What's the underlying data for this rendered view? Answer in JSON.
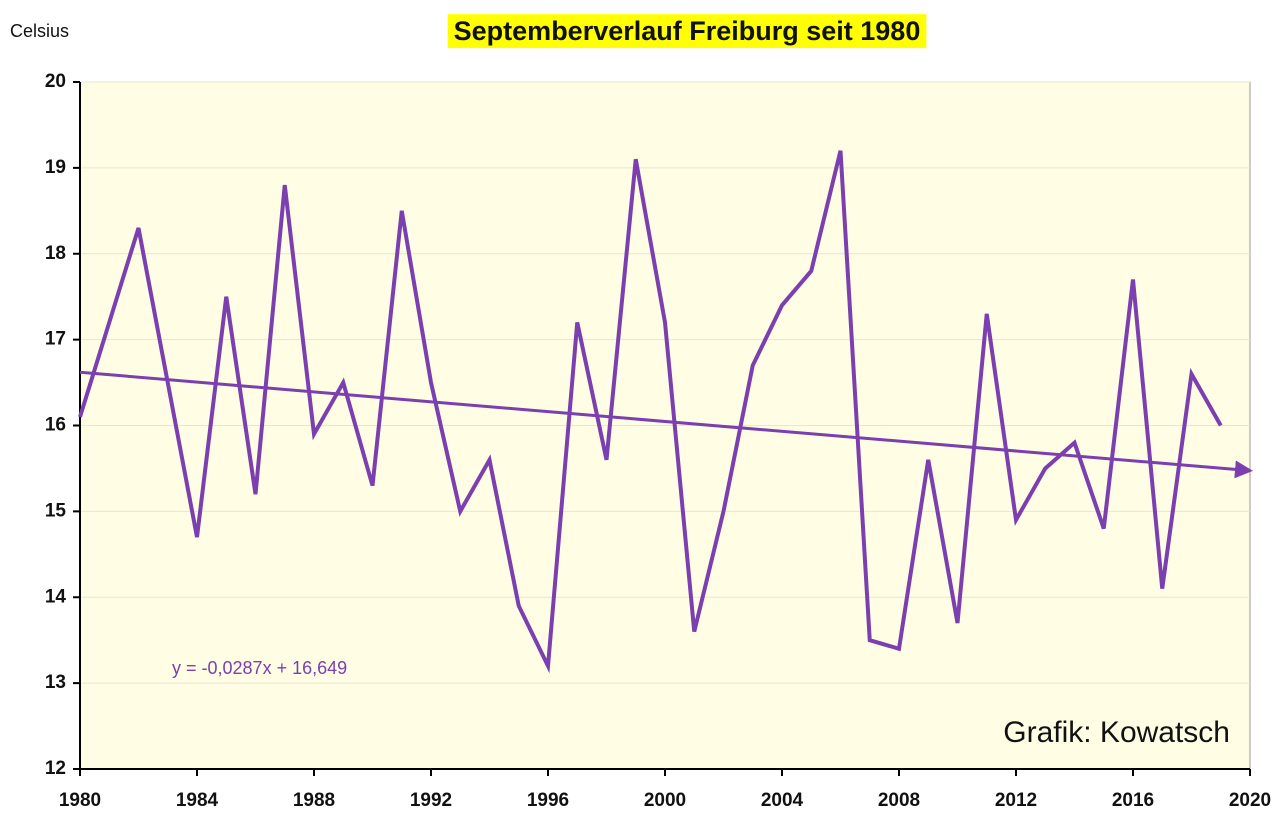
{
  "chart_data": {
    "type": "line",
    "title": "Septemberverlauf Freiburg seit 1980",
    "ylabel": "Celsius",
    "annotations": [
      "y = -0,0287x + 16,649",
      "Grafik: Kowatsch"
    ],
    "x": [
      1980,
      1981,
      1982,
      1983,
      1984,
      1985,
      1986,
      1987,
      1988,
      1989,
      1990,
      1991,
      1992,
      1993,
      1994,
      1995,
      1996,
      1997,
      1998,
      1999,
      2000,
      2001,
      2002,
      2003,
      2004,
      2005,
      2006,
      2007,
      2008,
      2009,
      2010,
      2011,
      2012,
      2013,
      2014,
      2015,
      2016,
      2017,
      2018,
      2019
    ],
    "series": [
      {
        "color": "#7b3fb0",
        "values": [
          16.1,
          17.2,
          18.3,
          16.5,
          14.7,
          17.5,
          15.2,
          18.8,
          15.9,
          16.5,
          15.3,
          18.5,
          16.5,
          15.0,
          15.6,
          13.9,
          13.2,
          17.2,
          15.6,
          19.1,
          17.2,
          13.6,
          15.0,
          16.7,
          17.4,
          17.8,
          19.2,
          13.5,
          13.4,
          15.6,
          13.7,
          17.3,
          14.9,
          15.5,
          15.8,
          14.8,
          17.7,
          14.1,
          16.6,
          16.0
        ]
      }
    ],
    "trend": {
      "color": "#7b3fb0",
      "x": [
        1980,
        2020
      ],
      "values": [
        16.62,
        15.48
      ]
    },
    "xlim": [
      1980,
      2020
    ],
    "xticks": [
      1980,
      1984,
      1988,
      1992,
      1996,
      2000,
      2004,
      2008,
      2012,
      2016,
      2020
    ],
    "ylim": [
      12,
      20
    ],
    "yticks": [
      12,
      13,
      14,
      15,
      16,
      17,
      18,
      19,
      20
    ],
    "grid": true,
    "plot_background": "#fffde4",
    "title_highlight": "#ffff00"
  }
}
